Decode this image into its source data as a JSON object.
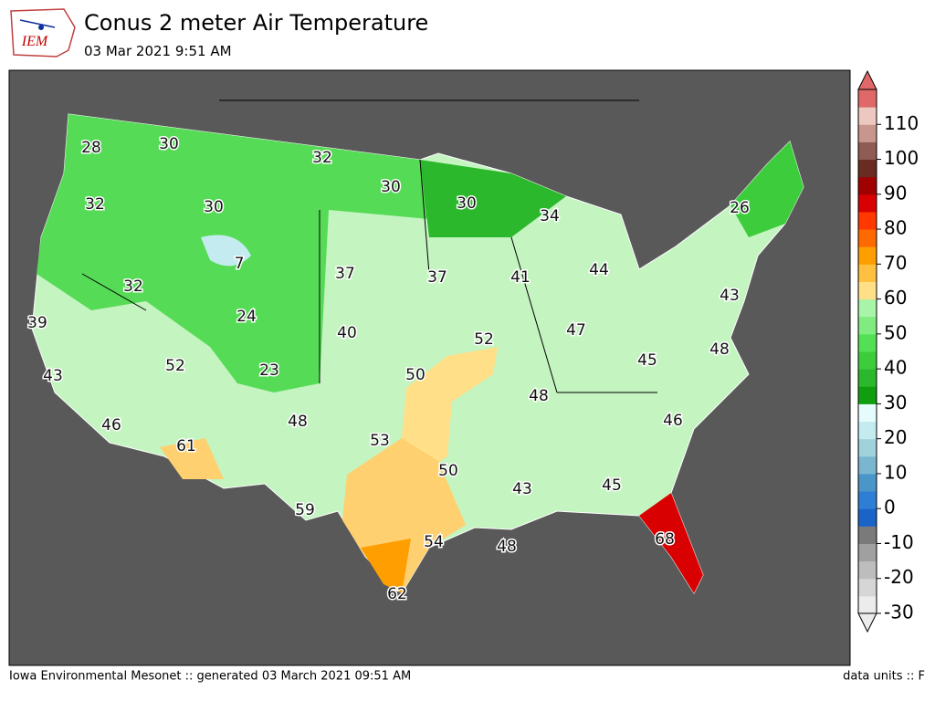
{
  "header": {
    "title": "Conus 2 meter Air Temperature",
    "subtitle": "03 Mar 2021 9:51 AM",
    "logo": "IEM"
  },
  "footer": {
    "left": "Iowa Environmental Mesonet :: generated 03 March 2021 09:51 AM",
    "right": "data units :: F"
  },
  "labels": [
    28,
    30,
    32,
    30,
    30,
    32,
    30,
    34,
    26,
    7,
    37,
    37,
    41,
    44,
    32,
    43,
    24,
    39,
    47,
    40,
    52,
    48,
    45,
    52,
    23,
    43,
    50,
    48,
    46,
    48,
    46,
    53,
    61,
    50,
    43,
    45,
    59,
    54,
    48,
    68,
    62
  ],
  "colorbar": {
    "range": [
      -30,
      120
    ],
    "ticks": [
      -30,
      -20,
      -10,
      0,
      10,
      20,
      30,
      40,
      50,
      60,
      70,
      80,
      90,
      100,
      110
    ],
    "colors": [
      "#ececec",
      "#d6d6d6",
      "#bdbdbd",
      "#a0a0a0",
      "#7a7a7a",
      "#1a64c8",
      "#2e7ed6",
      "#4a96c8",
      "#7ab6d0",
      "#a0d2dc",
      "#c4ecf0",
      "#e6fcfc",
      "#109e10",
      "#2cb82c",
      "#3ccc3c",
      "#54e054",
      "#80ec80",
      "#a8f4a8",
      "#ffe088",
      "#ffc040",
      "#ff9e00",
      "#ff6a00",
      "#ff3800",
      "#d80000",
      "#a00000",
      "#6a2c22",
      "#8e5c52",
      "#c8968c",
      "#ecc8c0",
      "#e06868"
    ]
  }
}
